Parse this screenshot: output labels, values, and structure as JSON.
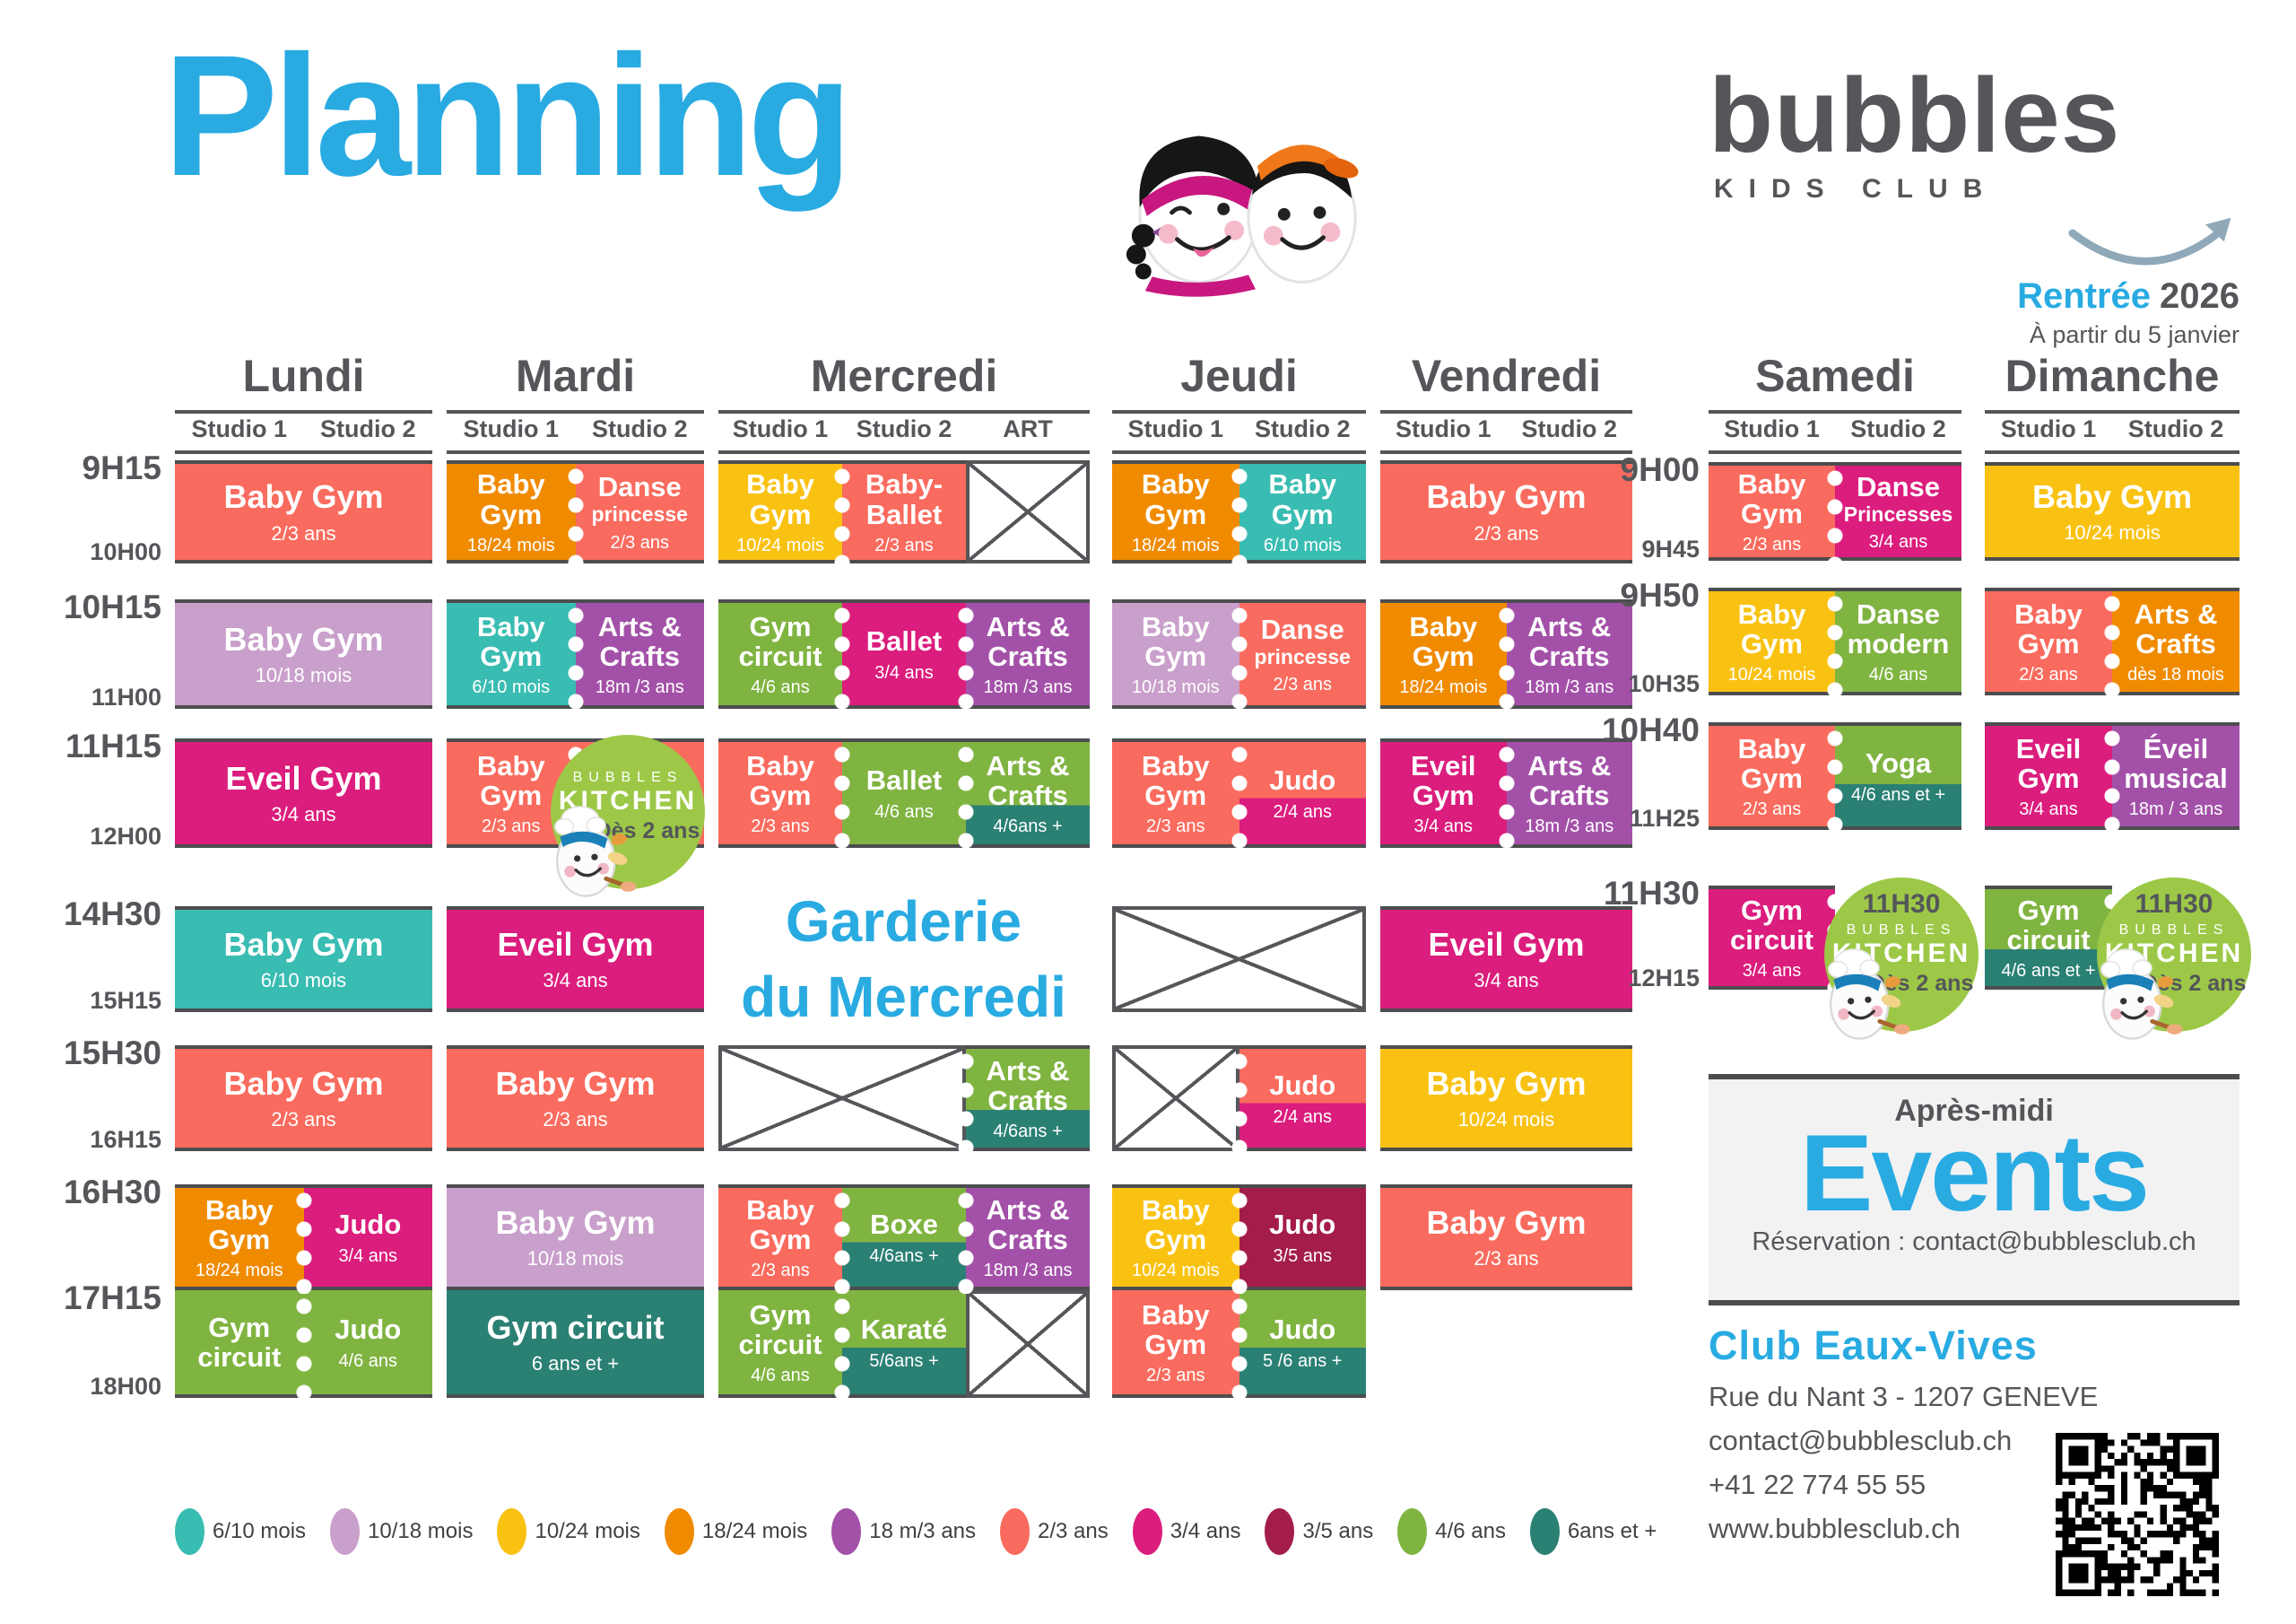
{
  "title": "Planning",
  "logo": {
    "name": "bubbles",
    "sub": "KIDS CLUB"
  },
  "rentree": {
    "label": "Rentrée",
    "year": "2026",
    "note": "À partir du 5 janvier"
  },
  "garderie": {
    "line1": "Garderie",
    "line2": "du Mercredi"
  },
  "events": {
    "heading": "Après-midi",
    "title": "Events",
    "reservation": "Réservation : contact@bubblesclub.ch"
  },
  "contact": {
    "club": "Club Eaux-Vives",
    "address": "Rue du Nant 3 - 1207 GENEVE",
    "email": "contact@bubblesclub.ch",
    "phone": "+41 22 774 55 55",
    "web": "www.bubblesclub.ch"
  },
  "palette": {
    "teal": "#39BCB2",
    "lilac": "#C99FCB",
    "yellow": "#F9C213",
    "orange": "#F08B00",
    "purple": "#A351A8",
    "salmon": "#F96B5E",
    "magenta": "#DB1D7D",
    "darkred": "#A41D49",
    "green": "#80B441",
    "darkteal": "#2B8074",
    "badge_green": "#9DC847",
    "blue": "#29ABE2",
    "gray": "#55565A"
  },
  "time_tracks": {
    "main": [
      {
        "start": "9H15",
        "end": "10H00"
      },
      {
        "start": "10H15",
        "end": "11H00"
      },
      {
        "start": "11H15",
        "end": "12H00"
      },
      {
        "start": "14H30",
        "end": "15H15"
      },
      {
        "start": "15H30",
        "end": "16H15"
      },
      {
        "start": "16H30",
        "end": "17H15"
      },
      {
        "start": "17H15",
        "end": "18H00"
      }
    ],
    "weekend": [
      {
        "start": "9H00",
        "end": "9H45"
      },
      {
        "start": "9H50",
        "end": "10H35"
      },
      {
        "start": "10H40",
        "end": "11H25"
      },
      {
        "start": "11H30",
        "end": "12H15"
      }
    ]
  },
  "days": [
    {
      "name": "Lundi",
      "track": "main",
      "columns": [
        "Studio 1",
        "Studio 2"
      ],
      "rows": [
        {
          "r": 0,
          "cells": [
            {
              "c": 0,
              "span": 2,
              "title": "Baby Gym",
              "age": "2/3 ans",
              "color": "salmon"
            }
          ]
        },
        {
          "r": 1,
          "cells": [
            {
              "c": 0,
              "span": 2,
              "title": "Baby Gym",
              "age": "10/18 mois",
              "color": "lilac"
            }
          ]
        },
        {
          "r": 2,
          "cells": [
            {
              "c": 0,
              "span": 2,
              "title": "Eveil Gym",
              "age": "3/4 ans",
              "color": "magenta"
            }
          ]
        },
        {
          "r": 3,
          "cells": [
            {
              "c": 0,
              "span": 2,
              "title": "Baby Gym",
              "age": "6/10 mois",
              "color": "teal"
            }
          ]
        },
        {
          "r": 4,
          "cells": [
            {
              "c": 0,
              "span": 2,
              "title": "Baby Gym",
              "age": "2/3 ans",
              "color": "salmon"
            }
          ]
        },
        {
          "r": 5,
          "cells": [
            {
              "c": 0,
              "title": "Baby\nGym",
              "age": "18/24 mois",
              "color": "orange"
            },
            {
              "c": 1,
              "title": "Judo",
              "age": "3/4 ans",
              "color": "magenta",
              "perf": true
            }
          ]
        },
        {
          "r": 6,
          "cells": [
            {
              "c": 0,
              "title": "Gym\ncircuit",
              "color": "green"
            },
            {
              "c": 1,
              "title": "Judo",
              "age": "4/6 ans",
              "color": "green",
              "perf": true
            }
          ]
        }
      ]
    },
    {
      "name": "Mardi",
      "track": "main",
      "columns": [
        "Studio 1",
        "Studio 2"
      ],
      "rows": [
        {
          "r": 0,
          "cells": [
            {
              "c": 0,
              "title": "Baby\nGym",
              "age": "18/24 mois",
              "color": "orange"
            },
            {
              "c": 1,
              "title": "Danse",
              "sub": "princesse",
              "age": "2/3 ans",
              "color": "salmon",
              "perf": true
            }
          ]
        },
        {
          "r": 1,
          "cells": [
            {
              "c": 0,
              "title": "Baby\nGym",
              "age": "6/10 mois",
              "color": "teal"
            },
            {
              "c": 1,
              "title": "Arts &\nCrafts",
              "age": "18m /3 ans",
              "color": "purple",
              "perf": true
            }
          ]
        },
        {
          "r": 2,
          "cells": [
            {
              "c": 0,
              "title": "Baby\nGym",
              "age": "2/3 ans",
              "color": "salmon"
            },
            {
              "c": 1,
              "color": "salmon",
              "perf": true
            }
          ]
        },
        {
          "r": 3,
          "cells": [
            {
              "c": 0,
              "span": 2,
              "title": "Eveil Gym",
              "age": "3/4 ans",
              "color": "magenta"
            }
          ]
        },
        {
          "r": 4,
          "cells": [
            {
              "c": 0,
              "span": 2,
              "title": "Baby Gym",
              "age": "2/3 ans",
              "color": "salmon"
            }
          ]
        },
        {
          "r": 5,
          "cells": [
            {
              "c": 0,
              "span": 2,
              "title": "Baby Gym",
              "age": "10/18 mois",
              "color": "lilac"
            }
          ]
        },
        {
          "r": 6,
          "cells": [
            {
              "c": 0,
              "span": 2,
              "title": "Gym circuit",
              "age": "6 ans et +",
              "color": "darkteal"
            }
          ]
        }
      ]
    },
    {
      "name": "Mercredi",
      "track": "main",
      "columns": [
        "Studio 1",
        "Studio 2",
        "ART"
      ],
      "rows": [
        {
          "r": 0,
          "cells": [
            {
              "c": 0,
              "title": "Baby\nGym",
              "age": "10/24 mois",
              "color": "yellow"
            },
            {
              "c": 1,
              "title": "Baby-\nBallet",
              "age": "2/3 ans",
              "color": "salmon",
              "perf": true
            },
            {
              "c": 2,
              "type": "x"
            }
          ]
        },
        {
          "r": 1,
          "cells": [
            {
              "c": 0,
              "title": "Gym\ncircuit",
              "age": "4/6 ans",
              "color": "green"
            },
            {
              "c": 1,
              "title": "Ballet",
              "age": "3/4 ans",
              "color": "magenta",
              "perf": true
            },
            {
              "c": 2,
              "title": "Arts &\nCrafts",
              "age": "18m /3 ans",
              "color": "purple",
              "perf": true
            }
          ]
        },
        {
          "r": 2,
          "cells": [
            {
              "c": 0,
              "title": "Baby\nGym",
              "age": "2/3 ans",
              "color": "salmon"
            },
            {
              "c": 1,
              "title": "Ballet",
              "age": "4/6 ans",
              "color": "green",
              "perf": true
            },
            {
              "c": 2,
              "title": "Arts &\nCrafts",
              "age": "4/6ans +",
              "color": [
                "green",
                "darkteal"
              ],
              "split": 62,
              "perf": true
            }
          ]
        },
        {
          "r": 4,
          "cells": [
            {
              "c": 0,
              "span": 2,
              "type": "x"
            },
            {
              "c": 2,
              "title": "Arts &\nCrafts",
              "age": "4/6ans +",
              "color": [
                "green",
                "darkteal"
              ],
              "split": 62,
              "perf": true
            }
          ]
        },
        {
          "r": 5,
          "cells": [
            {
              "c": 0,
              "title": "Baby\nGym",
              "age": "2/3 ans",
              "color": "salmon"
            },
            {
              "c": 1,
              "title": "Boxe",
              "age": "4/6ans +",
              "color": [
                "green",
                "darkteal"
              ],
              "split": 55,
              "perf": true
            },
            {
              "c": 2,
              "title": "Arts &\nCrafts",
              "age": "18m /3 ans",
              "color": "purple",
              "perf": true
            }
          ]
        },
        {
          "r": 6,
          "cells": [
            {
              "c": 0,
              "title": "Gym\ncircuit",
              "age": "4/6 ans",
              "color": "green"
            },
            {
              "c": 1,
              "title": "Karaté",
              "age": "5/6ans +",
              "color": [
                "green",
                "darkteal"
              ],
              "split": 55,
              "perf": true
            },
            {
              "c": 2,
              "type": "x"
            }
          ]
        }
      ]
    },
    {
      "name": "Jeudi",
      "track": "main",
      "columns": [
        "Studio 1",
        "Studio 2"
      ],
      "rows": [
        {
          "r": 0,
          "cells": [
            {
              "c": 0,
              "title": "Baby\nGym",
              "age": "18/24 mois",
              "color": "orange"
            },
            {
              "c": 1,
              "title": "Baby\nGym",
              "age": "6/10 mois",
              "color": "teal",
              "perf": true
            }
          ]
        },
        {
          "r": 1,
          "cells": [
            {
              "c": 0,
              "title": "Baby\nGym",
              "age": "10/18 mois",
              "color": "lilac"
            },
            {
              "c": 1,
              "title": "Danse",
              "sub": "princesse",
              "age": "2/3 ans",
              "color": "salmon",
              "perf": true
            }
          ]
        },
        {
          "r": 2,
          "cells": [
            {
              "c": 0,
              "title": "Baby\nGym",
              "age": "2/3 ans",
              "color": "salmon"
            },
            {
              "c": 1,
              "title": "Judo",
              "age": "2/4 ans",
              "color": [
                "salmon",
                "magenta"
              ],
              "split": 55,
              "perf": true
            }
          ]
        },
        {
          "r": 3,
          "cells": [
            {
              "c": 0,
              "span": 2,
              "type": "x"
            }
          ]
        },
        {
          "r": 4,
          "cells": [
            {
              "c": 0,
              "type": "x"
            },
            {
              "c": 1,
              "title": "Judo",
              "age": "2/4 ans",
              "color": [
                "salmon",
                "magenta"
              ],
              "split": 55,
              "perf": true
            }
          ]
        },
        {
          "r": 5,
          "cells": [
            {
              "c": 0,
              "title": "Baby\nGym",
              "age": "10/24 mois",
              "color": "yellow"
            },
            {
              "c": 1,
              "title": "Judo",
              "age": "3/5 ans",
              "color": "darkred",
              "perf": true
            }
          ]
        },
        {
          "r": 6,
          "cells": [
            {
              "c": 0,
              "title": "Baby\nGym",
              "age": "2/3 ans",
              "color": "salmon"
            },
            {
              "c": 1,
              "title": "Judo",
              "age": "5 /6 ans +",
              "color": [
                "green",
                "darkteal"
              ],
              "split": 55,
              "perf": true
            }
          ]
        }
      ]
    },
    {
      "name": "Vendredi",
      "track": "main",
      "columns": [
        "Studio 1",
        "Studio 2"
      ],
      "rows": [
        {
          "r": 0,
          "cells": [
            {
              "c": 0,
              "span": 2,
              "title": "Baby Gym",
              "age": "2/3 ans",
              "color": "salmon"
            }
          ]
        },
        {
          "r": 1,
          "cells": [
            {
              "c": 0,
              "title": "Baby\nGym",
              "age": "18/24 mois",
              "color": "orange"
            },
            {
              "c": 1,
              "title": "Arts &\nCrafts",
              "age": "18m /3 ans",
              "color": "purple",
              "perf": true
            }
          ]
        },
        {
          "r": 2,
          "cells": [
            {
              "c": 0,
              "title": "Eveil\nGym",
              "age": "3/4 ans",
              "color": "magenta"
            },
            {
              "c": 1,
              "title": "Arts &\nCrafts",
              "age": "18m /3 ans",
              "color": "purple",
              "perf": true
            }
          ]
        },
        {
          "r": 3,
          "cells": [
            {
              "c": 0,
              "span": 2,
              "title": "Eveil Gym",
              "age": "3/4 ans",
              "color": "magenta"
            }
          ]
        },
        {
          "r": 4,
          "cells": [
            {
              "c": 0,
              "span": 2,
              "title": "Baby Gym",
              "age": "10/24 mois",
              "color": "yellow"
            }
          ]
        },
        {
          "r": 5,
          "cells": [
            {
              "c": 0,
              "span": 2,
              "title": "Baby Gym",
              "age": "2/3 ans",
              "color": "salmon"
            }
          ]
        }
      ]
    },
    {
      "name": "Samedi",
      "track": "weekend",
      "columns": [
        "Studio 1",
        "Studio 2"
      ],
      "rows": [
        {
          "r": 0,
          "cells": [
            {
              "c": 0,
              "title": "Baby\nGym",
              "age": "2/3 ans",
              "color": "salmon"
            },
            {
              "c": 1,
              "title": "Danse",
              "sub": "Princesses",
              "age": "3/4 ans",
              "color": "magenta",
              "perf": true
            }
          ]
        },
        {
          "r": 1,
          "cells": [
            {
              "c": 0,
              "title": "Baby\nGym",
              "age": "10/24 mois",
              "color": "yellow"
            },
            {
              "c": 1,
              "title": "Danse\nmodern",
              "age": "4/6 ans",
              "color": "green",
              "perf": true
            }
          ]
        },
        {
          "r": 2,
          "cells": [
            {
              "c": 0,
              "title": "Baby\nGym",
              "age": "2/3 ans",
              "color": "salmon"
            },
            {
              "c": 1,
              "title": "Yoga",
              "age": "4/6 ans et +",
              "color": [
                "green",
                "darkteal"
              ],
              "split": 58,
              "perf": true
            }
          ]
        },
        {
          "r": 3,
          "cells": [
            {
              "c": 0,
              "title": "Gym\ncircuit",
              "age": "3/4 ans",
              "color": "magenta",
              "perfRight": true
            }
          ]
        }
      ]
    },
    {
      "name": "Dimanche",
      "track": "weekend",
      "columns": [
        "Studio 1",
        "Studio 2"
      ],
      "rows": [
        {
          "r": 0,
          "cells": [
            {
              "c": 0,
              "span": 2,
              "title": "Baby Gym",
              "age": "10/24 mois",
              "color": "yellow"
            }
          ]
        },
        {
          "r": 1,
          "cells": [
            {
              "c": 0,
              "title": "Baby\nGym",
              "age": "2/3 ans",
              "color": "salmon"
            },
            {
              "c": 1,
              "title": "Arts &\nCrafts",
              "age": "dès 18 mois",
              "color": "orange",
              "perf": true
            }
          ]
        },
        {
          "r": 2,
          "cells": [
            {
              "c": 0,
              "title": "Eveil\nGym",
              "age": "3/4 ans",
              "color": "magenta"
            },
            {
              "c": 1,
              "title": "Éveil\nmusical",
              "age": "18m / 3 ans",
              "color": "purple",
              "perf": true
            }
          ]
        },
        {
          "r": 3,
          "cells": [
            {
              "c": 0,
              "title": "Gym\ncircuit",
              "age": "4/6 ans et +",
              "color": [
                "green",
                "darkteal"
              ],
              "split": 62,
              "perfRight": true
            }
          ]
        }
      ]
    }
  ],
  "badges": [
    {
      "id": "mardi",
      "time": "",
      "brand": "BUBBLES",
      "product": "KITCHEN",
      "age": "Dès 2 ans"
    },
    {
      "id": "samedi",
      "time": "11H30",
      "brand": "BUBBLES",
      "product": "KITCHEN",
      "age": "Dès 2 ans"
    },
    {
      "id": "dimanche",
      "time": "11H30",
      "brand": "BUBBLES",
      "product": "KITCHEN",
      "age": "Dès 2 ans"
    }
  ],
  "legend": [
    {
      "label": "6/10 mois",
      "color": "teal"
    },
    {
      "label": "10/18 mois",
      "color": "lilac"
    },
    {
      "label": "10/24 mois",
      "color": "yellow"
    },
    {
      "label": "18/24 mois",
      "color": "orange"
    },
    {
      "label": "18 m/3 ans",
      "color": "purple"
    },
    {
      "label": "2/3 ans",
      "color": "salmon"
    },
    {
      "label": "3/4 ans",
      "color": "magenta"
    },
    {
      "label": "3/5 ans",
      "color": "darkred"
    },
    {
      "label": "4/6 ans",
      "color": "green"
    },
    {
      "label": "6ans et +",
      "color": "darkteal"
    }
  ]
}
